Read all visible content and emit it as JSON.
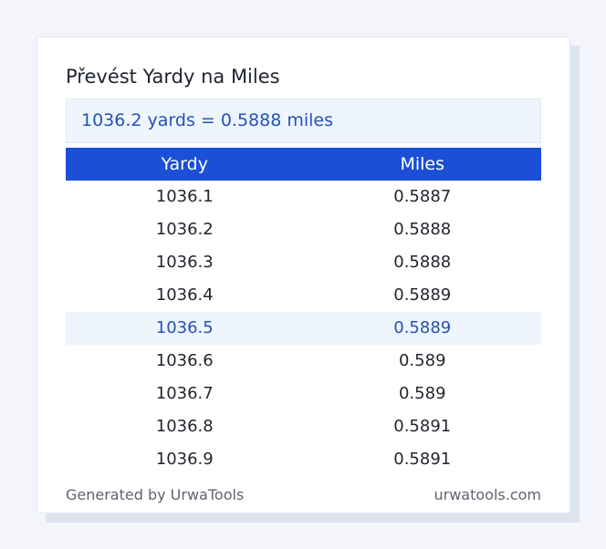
{
  "card": {
    "title": "Převést Yardy na Miles",
    "result": "1036.2 yards = 0.5888 miles"
  },
  "table": {
    "headers": [
      "Yardy",
      "Miles"
    ],
    "rows": [
      [
        "1036.1",
        "0.5887"
      ],
      [
        "1036.2",
        "0.5888"
      ],
      [
        "1036.3",
        "0.5888"
      ],
      [
        "1036.4",
        "0.5889"
      ],
      [
        "1036.5",
        "0.5889"
      ],
      [
        "1036.6",
        "0.589"
      ],
      [
        "1036.7",
        "0.589"
      ],
      [
        "1036.8",
        "0.5891"
      ],
      [
        "1036.9",
        "0.5891"
      ]
    ],
    "highlighted_row": 4
  },
  "footer": {
    "generated_by": "Generated by UrwaTools",
    "site": "urwatools.com"
  },
  "colors": {
    "accent": "#1a4fd6",
    "result_text": "#2452b6",
    "highlight_bg": "#eef5fd"
  }
}
